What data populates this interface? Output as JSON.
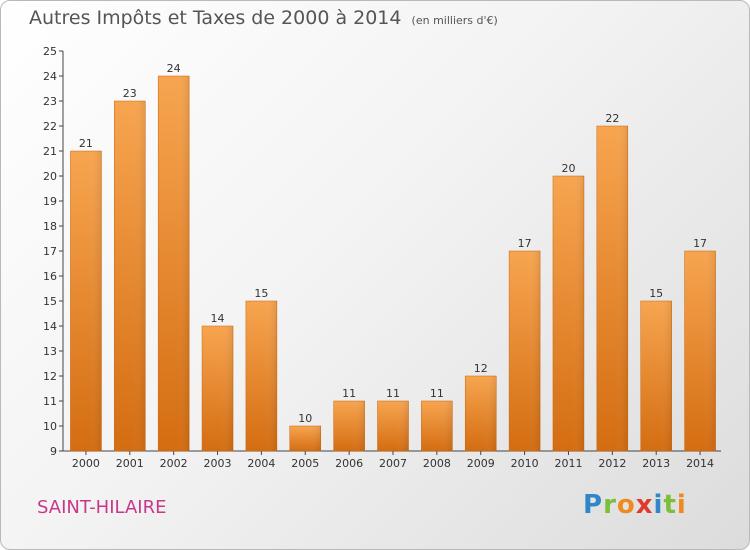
{
  "chart_data": {
    "type": "bar",
    "title": "Autres Impôts et Taxes de 2000 à 2014",
    "subtitle": "(en milliers d'€)",
    "categories": [
      "2000",
      "2001",
      "2002",
      "2003",
      "2004",
      "2005",
      "2006",
      "2007",
      "2008",
      "2009",
      "2010",
      "2011",
      "2012",
      "2013",
      "2014"
    ],
    "values": [
      21,
      23,
      24,
      14,
      15,
      10,
      11,
      11,
      11,
      12,
      17,
      20,
      22,
      15,
      17
    ],
    "ylim": [
      9,
      25
    ],
    "yticks": [
      9,
      10,
      11,
      12,
      13,
      14,
      15,
      16,
      17,
      18,
      19,
      20,
      21,
      22,
      23,
      24,
      25
    ],
    "xlabel": "",
    "ylabel": "",
    "grid": false,
    "bar_color": "#f0922f"
  },
  "footer": {
    "city": "SAINT-HILAIRE",
    "logo_letters": [
      {
        "char": "P",
        "color": "#2f87c8"
      },
      {
        "char": "r",
        "color": "#7bbf3a"
      },
      {
        "char": "o",
        "color": "#f08a1e"
      },
      {
        "char": "x",
        "color": "#e03a2f"
      },
      {
        "char": "i",
        "color": "#2f87c8"
      },
      {
        "char": "t",
        "color": "#7bbf3a"
      },
      {
        "char": "i",
        "color": "#f08a1e"
      }
    ]
  }
}
